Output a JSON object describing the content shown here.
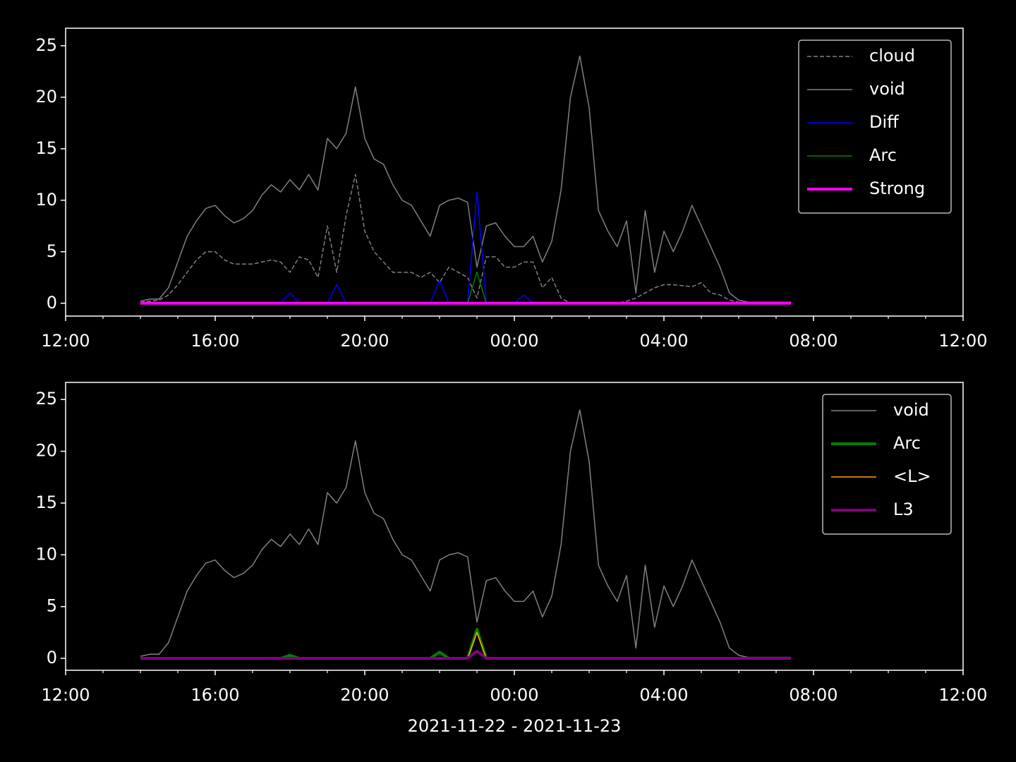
{
  "chart_data": [
    {
      "type": "line",
      "x": [
        14,
        14.25,
        14.5,
        14.75,
        15,
        15.25,
        15.5,
        15.75,
        16,
        16.25,
        16.5,
        16.75,
        17,
        17.25,
        17.5,
        17.75,
        18,
        18.25,
        18.5,
        18.75,
        19,
        19.25,
        19.5,
        19.75,
        20,
        20.25,
        20.5,
        20.75,
        21,
        21.25,
        21.5,
        21.75,
        22,
        22.25,
        22.5,
        22.75,
        23,
        23.25,
        23.5,
        23.75,
        24,
        24.25,
        24.5,
        24.75,
        25,
        25.25,
        25.5,
        25.75,
        26,
        26.25,
        26.5,
        26.75,
        27,
        27.25,
        27.5,
        27.75,
        28,
        28.25,
        28.5,
        28.75,
        29,
        29.25,
        29.5,
        29.75,
        30,
        30.25,
        30.5,
        30.75,
        31,
        31.25,
        31.4
      ],
      "xlim": [
        12,
        36
      ],
      "xticks": [
        {
          "value": 12,
          "label": "12:00"
        },
        {
          "value": 16,
          "label": "16:00"
        },
        {
          "value": 20,
          "label": "20:00"
        },
        {
          "value": 24,
          "label": "00:00"
        },
        {
          "value": 28,
          "label": "04:00"
        },
        {
          "value": 32,
          "label": "08:00"
        },
        {
          "value": 36,
          "label": "12:00"
        }
      ],
      "xminorticks": [
        13,
        14,
        15,
        17,
        18,
        19,
        21,
        22,
        23,
        25,
        26,
        27,
        29,
        30,
        31,
        33,
        34,
        35
      ],
      "ylim": [
        -1.25,
        26.7
      ],
      "yticks": [
        0,
        5,
        10,
        15,
        20,
        25
      ],
      "legend": "upper right",
      "series": [
        {
          "name": "cloud",
          "color": "#808080",
          "linestyle": "dashed",
          "linewidth": 1.5,
          "values": [
            0.1,
            0.2,
            0.3,
            0.8,
            1.8,
            3.0,
            4.2,
            5.0,
            5.0,
            4.2,
            3.8,
            3.8,
            3.8,
            4.0,
            4.2,
            4.0,
            3.0,
            4.5,
            4.2,
            2.5,
            7.5,
            3.0,
            8.5,
            12.5,
            7.0,
            5.0,
            4.0,
            3.0,
            3.0,
            3.0,
            2.5,
            3.0,
            2.0,
            3.5,
            3.0,
            2.5,
            0.5,
            4.5,
            4.5,
            3.5,
            3.5,
            4.0,
            4.0,
            1.5,
            2.5,
            0.5,
            0,
            0,
            0,
            0,
            0,
            0,
            0.2,
            0.5,
            1.0,
            1.5,
            1.8,
            1.8,
            1.7,
            1.6,
            2.0,
            1.0,
            0.8,
            0.3,
            0.1,
            0,
            0,
            0,
            0,
            0,
            0
          ]
        },
        {
          "name": "void",
          "color": "#808080",
          "linestyle": "solid",
          "linewidth": 1.5,
          "values": [
            0.2,
            0.4,
            0.4,
            1.5,
            4.0,
            6.5,
            8.0,
            9.2,
            9.5,
            8.5,
            7.8,
            8.2,
            9.0,
            10.5,
            11.5,
            10.8,
            12.0,
            11.0,
            12.5,
            11.0,
            16.0,
            15.0,
            16.5,
            21.0,
            16.0,
            14.0,
            13.5,
            11.5,
            10.0,
            9.5,
            8.0,
            6.5,
            9.5,
            10.0,
            10.2,
            9.8,
            3.5,
            7.5,
            7.8,
            6.5,
            5.5,
            5.5,
            6.5,
            4.0,
            6.0,
            11.0,
            20.0,
            24.0,
            19.0,
            9.0,
            7.0,
            5.5,
            8.0,
            1.0,
            9.0,
            3.0,
            7.0,
            5.0,
            7.0,
            9.5,
            7.5,
            5.5,
            3.5,
            1.0,
            0.3,
            0.1,
            0.1,
            0.1,
            0.1,
            0.1,
            0.1
          ]
        },
        {
          "name": "Diff",
          "color": "#0000ff",
          "linestyle": "solid",
          "linewidth": 1.5,
          "values": [
            0,
            0,
            0,
            0,
            0,
            0,
            0,
            0,
            0,
            0,
            0,
            0,
            0,
            0,
            0,
            0,
            1.0,
            0,
            0,
            0,
            0,
            1.8,
            0,
            0,
            0,
            0,
            0,
            0,
            0,
            0,
            0,
            0,
            2.2,
            0,
            0,
            0,
            10.8,
            0,
            0,
            0,
            0,
            0.8,
            0,
            0,
            0,
            0,
            0,
            0,
            0,
            0,
            0,
            0,
            0,
            0,
            0,
            0,
            0,
            0,
            0,
            0,
            0,
            0,
            0,
            0,
            0,
            0,
            0,
            0,
            0,
            0,
            0
          ]
        },
        {
          "name": "Arc",
          "color": "#008000",
          "linestyle": "solid",
          "linewidth": 1.5,
          "values": [
            0,
            0,
            0,
            0,
            0,
            0,
            0,
            0,
            0,
            0,
            0,
            0,
            0,
            0,
            0,
            0,
            0,
            0,
            0,
            0,
            0,
            0,
            0,
            0,
            0,
            0,
            0,
            0,
            0,
            0,
            0,
            0,
            0,
            0,
            0,
            0,
            3.0,
            0,
            0,
            0,
            0,
            0,
            0,
            0,
            0,
            0,
            0,
            0,
            0,
            0,
            0,
            0,
            0,
            0,
            0,
            0,
            0,
            0,
            0,
            0,
            0,
            0,
            0,
            0,
            0,
            0,
            0,
            0,
            0,
            0,
            0
          ]
        },
        {
          "name": "Strong",
          "color": "#ff00ff",
          "linestyle": "solid",
          "linewidth": 4,
          "values": [
            0,
            0,
            0,
            0,
            0,
            0,
            0,
            0,
            0,
            0,
            0,
            0,
            0,
            0,
            0,
            0,
            0,
            0,
            0,
            0,
            0,
            0,
            0,
            0,
            0,
            0,
            0,
            0,
            0,
            0,
            0,
            0,
            0,
            0,
            0,
            0,
            0,
            0,
            0,
            0,
            0,
            0,
            0,
            0,
            0,
            0,
            0,
            0,
            0,
            0,
            0,
            0,
            0,
            0,
            0,
            0,
            0,
            0,
            0,
            0,
            0,
            0,
            0,
            0,
            0,
            0,
            0,
            0,
            0,
            0,
            0
          ]
        }
      ]
    },
    {
      "type": "line",
      "x": [
        14,
        14.25,
        14.5,
        14.75,
        15,
        15.25,
        15.5,
        15.75,
        16,
        16.25,
        16.5,
        16.75,
        17,
        17.25,
        17.5,
        17.75,
        18,
        18.25,
        18.5,
        18.75,
        19,
        19.25,
        19.5,
        19.75,
        20,
        20.25,
        20.5,
        20.75,
        21,
        21.25,
        21.5,
        21.75,
        22,
        22.25,
        22.5,
        22.75,
        23,
        23.25,
        23.5,
        23.75,
        24,
        24.25,
        24.5,
        24.75,
        25,
        25.25,
        25.5,
        25.75,
        26,
        26.25,
        26.5,
        26.75,
        27,
        27.25,
        27.5,
        27.75,
        28,
        28.25,
        28.5,
        28.75,
        29,
        29.25,
        29.5,
        29.75,
        30,
        30.25,
        30.5,
        30.75,
        31,
        31.25,
        31.4
      ],
      "xlim": [
        12,
        36
      ],
      "xticks": [
        {
          "value": 12,
          "label": "12:00"
        },
        {
          "value": 16,
          "label": "16:00"
        },
        {
          "value": 20,
          "label": "20:00"
        },
        {
          "value": 24,
          "label": "00:00"
        },
        {
          "value": 28,
          "label": "04:00"
        },
        {
          "value": 32,
          "label": "08:00"
        },
        {
          "value": 36,
          "label": "12:00"
        }
      ],
      "xminorticks": [
        13,
        14,
        15,
        17,
        18,
        19,
        21,
        22,
        23,
        25,
        26,
        27,
        29,
        30,
        31,
        33,
        34,
        35
      ],
      "xlabel": "2021-11-22 - 2021-11-23",
      "ylim": [
        -1.15,
        26.65
      ],
      "yticks": [
        0,
        5,
        10,
        15,
        20,
        25
      ],
      "legend": "upper right",
      "series": [
        {
          "name": "void",
          "color": "#808080",
          "linestyle": "solid",
          "linewidth": 1.5,
          "values": [
            0.2,
            0.4,
            0.4,
            1.5,
            4.0,
            6.5,
            8.0,
            9.2,
            9.5,
            8.5,
            7.8,
            8.2,
            9.0,
            10.5,
            11.5,
            10.8,
            12.0,
            11.0,
            12.5,
            11.0,
            16.0,
            15.0,
            16.5,
            21.0,
            16.0,
            14.0,
            13.5,
            11.5,
            10.0,
            9.5,
            8.0,
            6.5,
            9.5,
            10.0,
            10.2,
            9.8,
            3.5,
            7.5,
            7.8,
            6.5,
            5.5,
            5.5,
            6.5,
            4.0,
            6.0,
            11.0,
            20.0,
            24.0,
            19.0,
            9.0,
            7.0,
            5.5,
            8.0,
            1.0,
            9.0,
            3.0,
            7.0,
            5.0,
            7.0,
            9.5,
            7.5,
            5.5,
            3.5,
            1.0,
            0.3,
            0.1,
            0.1,
            0.1,
            0.1,
            0.1,
            0.1
          ]
        },
        {
          "name": "Arc",
          "color": "#008000",
          "linestyle": "solid",
          "linewidth": 4,
          "values": [
            0,
            0,
            0,
            0,
            0,
            0,
            0,
            0,
            0,
            0,
            0,
            0,
            0,
            0,
            0,
            0,
            0.3,
            0,
            0,
            0,
            0,
            0,
            0,
            0,
            0,
            0,
            0,
            0,
            0,
            0,
            0,
            0,
            0.6,
            0,
            0,
            0,
            2.8,
            0,
            0,
            0,
            0,
            0,
            0,
            0,
            0,
            0,
            0,
            0,
            0,
            0,
            0,
            0,
            0,
            0,
            0,
            0,
            0,
            0,
            0,
            0,
            0,
            0,
            0,
            0,
            0,
            0,
            0,
            0,
            0,
            0,
            0
          ]
        },
        {
          "name": "<L>",
          "color": "#ffa500",
          "linestyle": "solid",
          "linewidth": 1.5,
          "values": [
            0,
            0,
            0,
            0,
            0,
            0,
            0,
            0,
            0,
            0,
            0,
            0,
            0,
            0,
            0,
            0,
            0,
            0,
            0,
            0,
            0,
            0,
            0,
            0,
            0,
            0,
            0,
            0,
            0,
            0,
            0,
            0,
            0,
            0,
            0,
            0,
            2.5,
            0,
            0,
            0,
            0,
            0,
            0,
            0,
            0,
            0,
            0,
            0,
            0,
            0,
            0,
            0,
            0,
            0,
            0,
            0,
            0,
            0,
            0,
            0,
            0,
            0,
            0,
            0,
            0,
            0,
            0,
            0,
            0,
            0,
            0
          ]
        },
        {
          "name": "L3",
          "color": "#800080",
          "linestyle": "solid",
          "linewidth": 4,
          "values": [
            0,
            0,
            0,
            0,
            0,
            0,
            0,
            0,
            0,
            0,
            0,
            0,
            0,
            0,
            0,
            0,
            0,
            0,
            0,
            0,
            0,
            0,
            0,
            0,
            0,
            0,
            0,
            0,
            0,
            0,
            0,
            0,
            0,
            0,
            0,
            0,
            0.7,
            0,
            0,
            0,
            0,
            0,
            0,
            0,
            0,
            0,
            0,
            0,
            0,
            0,
            0,
            0,
            0,
            0,
            0,
            0,
            0,
            0,
            0,
            0,
            0,
            0,
            0,
            0,
            0,
            0,
            0,
            0,
            0,
            0,
            0
          ]
        }
      ]
    }
  ]
}
